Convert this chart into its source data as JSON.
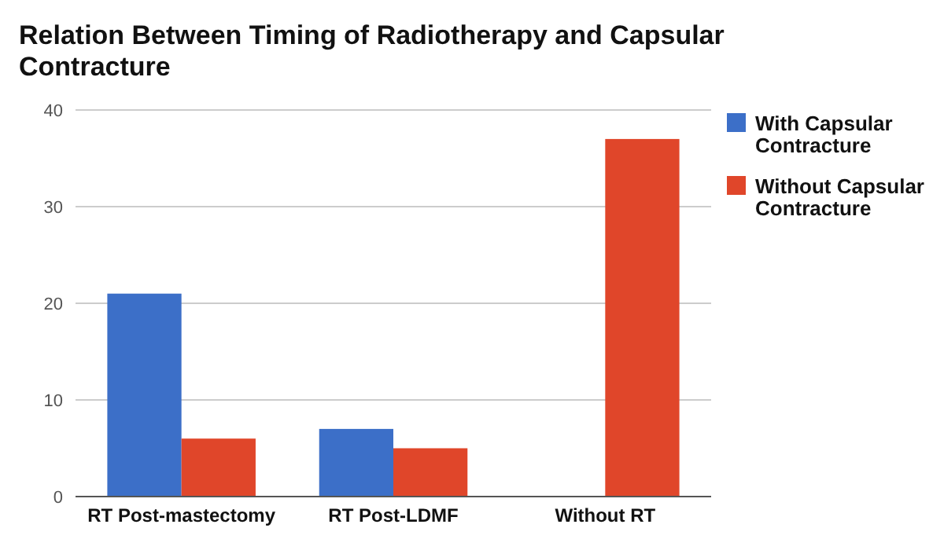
{
  "chart_data": {
    "type": "bar",
    "title": "Relation Between Timing of Radiotherapy and Capsular Contracture",
    "categories": [
      "RT Post-mastectomy",
      "RT Post-LDMF",
      "Without RT"
    ],
    "series": [
      {
        "name": "With Capsular Contracture",
        "color": "#3c6fc8",
        "values": [
          21,
          7,
          0
        ]
      },
      {
        "name": "Without Capsular Contracture",
        "color": "#e0462a",
        "values": [
          6,
          5,
          37
        ]
      }
    ],
    "ylim": [
      0,
      40
    ],
    "yticks": [
      0,
      10,
      20,
      30,
      40
    ],
    "grid": "y",
    "legend": "right"
  }
}
